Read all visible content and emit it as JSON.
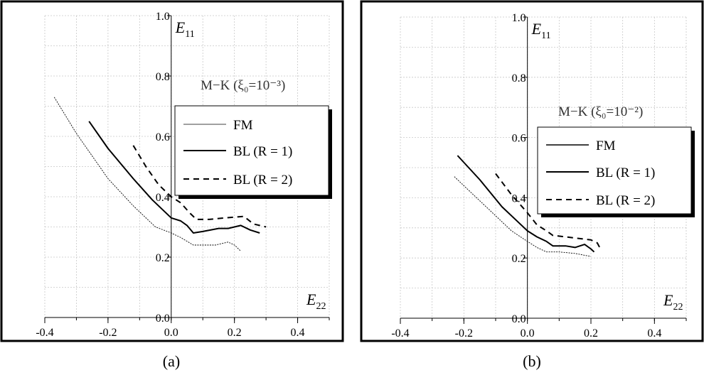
{
  "panels": [
    {
      "caption": "(a)",
      "annotation": "M−K (ξ₀=10⁻³)",
      "chart_data": {
        "type": "line",
        "xlabel": "E22",
        "ylabel": "E11",
        "xlim": [
          -0.4,
          0.5
        ],
        "ylim": [
          0.0,
          1.0
        ],
        "x_ticks": [
          "-0.4",
          "-0.2",
          "0.0",
          "0.2",
          "0.4"
        ],
        "y_ticks": [
          "0.0",
          "0.2",
          "0.4",
          "0.6",
          "0.8",
          "1.0"
        ],
        "grid": true,
        "legend_placement": "right-middle",
        "series": [
          {
            "name": "FM",
            "style": "thin",
            "points": [
              [
                -0.37,
                0.73
              ],
              [
                -0.3,
                0.61
              ],
              [
                -0.2,
                0.46
              ],
              [
                -0.12,
                0.37
              ],
              [
                -0.05,
                0.3
              ],
              [
                0.0,
                0.28
              ],
              [
                0.03,
                0.265
              ],
              [
                0.07,
                0.24
              ],
              [
                0.1,
                0.24
              ],
              [
                0.14,
                0.24
              ],
              [
                0.18,
                0.25
              ],
              [
                0.2,
                0.24
              ],
              [
                0.22,
                0.22
              ]
            ]
          },
          {
            "name": "BL (R = 1)",
            "style": "solid",
            "points": [
              [
                -0.26,
                0.65
              ],
              [
                -0.2,
                0.56
              ],
              [
                -0.12,
                0.46
              ],
              [
                -0.06,
                0.39
              ],
              [
                -0.02,
                0.35
              ],
              [
                0.0,
                0.33
              ],
              [
                0.03,
                0.32
              ],
              [
                0.05,
                0.305
              ],
              [
                0.07,
                0.28
              ],
              [
                0.1,
                0.285
              ],
              [
                0.15,
                0.295
              ],
              [
                0.18,
                0.295
              ],
              [
                0.22,
                0.305
              ],
              [
                0.25,
                0.29
              ],
              [
                0.28,
                0.28
              ]
            ]
          },
          {
            "name": "BL (R = 2)",
            "style": "dashed",
            "points": [
              [
                -0.12,
                0.57
              ],
              [
                -0.08,
                0.5
              ],
              [
                -0.04,
                0.44
              ],
              [
                0.0,
                0.4
              ],
              [
                0.03,
                0.38
              ],
              [
                0.06,
                0.345
              ],
              [
                0.08,
                0.325
              ],
              [
                0.12,
                0.325
              ],
              [
                0.17,
                0.33
              ],
              [
                0.23,
                0.335
              ],
              [
                0.26,
                0.31
              ],
              [
                0.3,
                0.3
              ]
            ]
          }
        ],
        "legend": [
          "FM",
          "BL (R = 1)",
          "BL (R = 2)"
        ]
      }
    },
    {
      "caption": "(b)",
      "annotation": "M−K (ξ₀=10⁻²)",
      "chart_data": {
        "type": "line",
        "xlabel": "E22",
        "ylabel": "E11",
        "xlim": [
          -0.4,
          0.5
        ],
        "ylim": [
          0.0,
          1.0
        ],
        "x_ticks": [
          "-0.4",
          "-0.2",
          "0.0",
          "0.2",
          "0.4"
        ],
        "y_ticks": [
          "0.0",
          "0.2",
          "0.4",
          "0.6",
          "0.8",
          "1.0"
        ],
        "grid": true,
        "legend_placement": "right-middle",
        "series": [
          {
            "name": "FM",
            "style": "thin",
            "points": [
              [
                -0.23,
                0.47
              ],
              [
                -0.17,
                0.41
              ],
              [
                -0.1,
                0.34
              ],
              [
                -0.05,
                0.29
              ],
              [
                0.0,
                0.255
              ],
              [
                0.03,
                0.235
              ],
              [
                0.06,
                0.22
              ],
              [
                0.1,
                0.22
              ],
              [
                0.15,
                0.215
              ],
              [
                0.2,
                0.205
              ]
            ]
          },
          {
            "name": "BL (R = 1)",
            "style": "solid",
            "points": [
              [
                -0.22,
                0.54
              ],
              [
                -0.15,
                0.46
              ],
              [
                -0.08,
                0.37
              ],
              [
                -0.03,
                0.32
              ],
              [
                0.0,
                0.29
              ],
              [
                0.03,
                0.27
              ],
              [
                0.06,
                0.255
              ],
              [
                0.08,
                0.24
              ],
              [
                0.12,
                0.24
              ],
              [
                0.15,
                0.235
              ],
              [
                0.18,
                0.245
              ],
              [
                0.2,
                0.23
              ],
              [
                0.21,
                0.22
              ]
            ]
          },
          {
            "name": "BL (R = 2)",
            "style": "dashed",
            "points": [
              [
                -0.1,
                0.48
              ],
              [
                -0.05,
                0.41
              ],
              [
                0.0,
                0.35
              ],
              [
                0.03,
                0.31
              ],
              [
                0.06,
                0.29
              ],
              [
                0.08,
                0.275
              ],
              [
                0.12,
                0.27
              ],
              [
                0.16,
                0.265
              ],
              [
                0.2,
                0.26
              ],
              [
                0.22,
                0.25
              ],
              [
                0.23,
                0.23
              ]
            ]
          }
        ],
        "legend": [
          "FM",
          "BL (R = 1)",
          "BL (R = 2)"
        ]
      }
    }
  ]
}
